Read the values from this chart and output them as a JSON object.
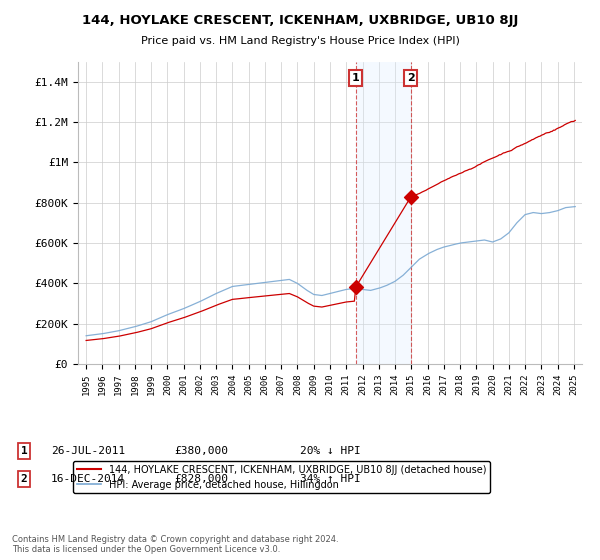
{
  "title": "144, HOYLAKE CRESCENT, ICKENHAM, UXBRIDGE, UB10 8JJ",
  "subtitle": "Price paid vs. HM Land Registry's House Price Index (HPI)",
  "hpi_label": "HPI: Average price, detached house, Hillingdon",
  "property_label": "144, HOYLAKE CRESCENT, ICKENHAM, UXBRIDGE, UB10 8JJ (detached house)",
  "annotation1": {
    "num": "1",
    "date": "26-JUL-2011",
    "price": "£380,000",
    "pct": "20% ↓ HPI"
  },
  "annotation2": {
    "num": "2",
    "date": "16-DEC-2014",
    "price": "£828,000",
    "pct": "34% ↑ HPI"
  },
  "sale1_x": 2011.57,
  "sale1_y": 380000,
  "sale2_x": 2014.96,
  "sale2_y": 828000,
  "hpi_color": "#7aa8d2",
  "property_color": "#cc0000",
  "shaded_region_color": "#ddeeff",
  "ylim": [
    0,
    1500000
  ],
  "xlim": [
    1994.5,
    2025.5
  ],
  "footer": "Contains HM Land Registry data © Crown copyright and database right 2024.\nThis data is licensed under the Open Government Licence v3.0.",
  "yticks": [
    0,
    200000,
    400000,
    600000,
    800000,
    1000000,
    1200000,
    1400000
  ],
  "ytick_labels": [
    "£0",
    "£200K",
    "£400K",
    "£600K",
    "£800K",
    "£1M",
    "£1.2M",
    "£1.4M"
  ]
}
